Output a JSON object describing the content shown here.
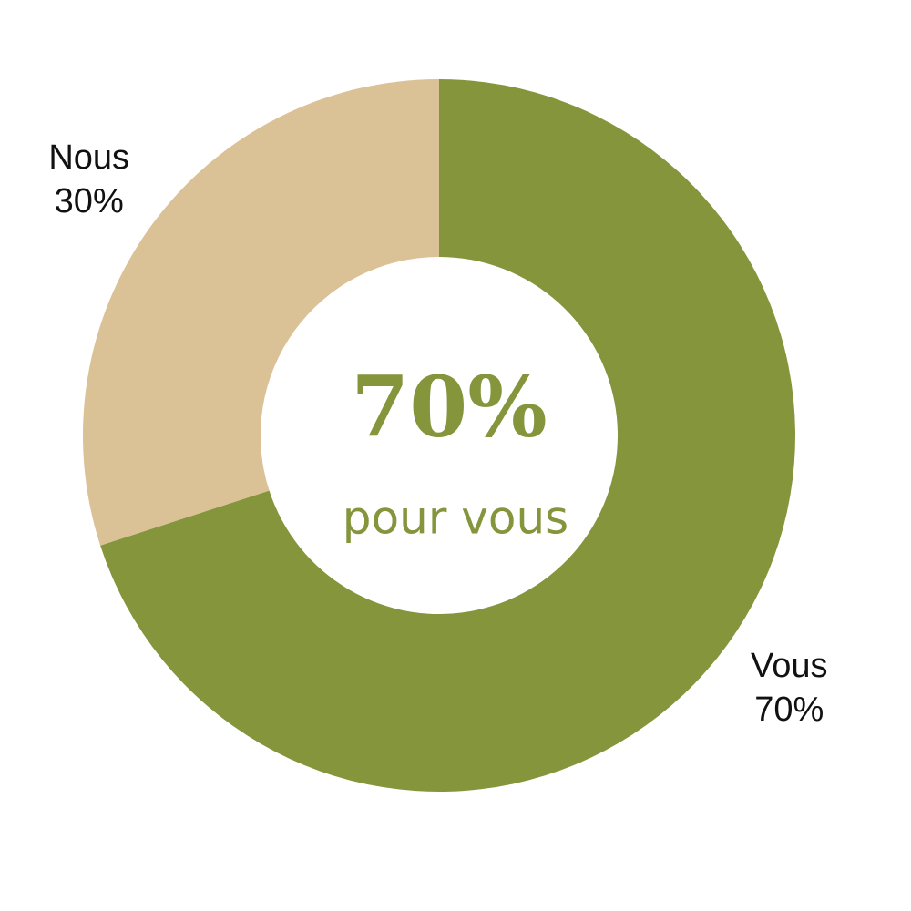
{
  "chart_data": {
    "type": "donut",
    "categories": [
      "Vous",
      "Nous"
    ],
    "values": [
      70,
      30
    ],
    "value_labels": [
      "70%",
      "30%"
    ],
    "colors": [
      "#84953c",
      "#dbc196"
    ],
    "center_label": "70%",
    "center_sublabel": "pour vous"
  }
}
